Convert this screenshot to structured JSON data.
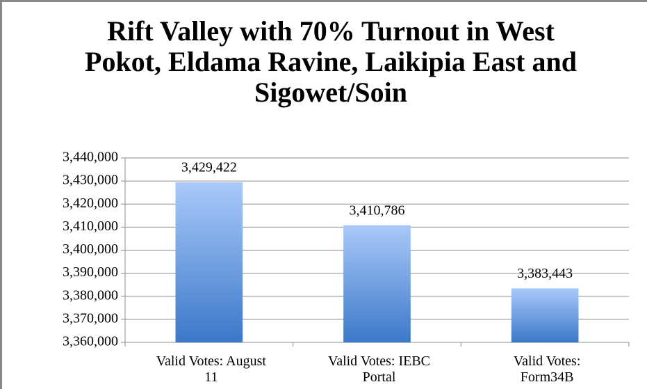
{
  "chart_data": {
    "type": "bar",
    "title": "Rift Valley with 70% Turnout in West Pokot, Eldama Ravine, Laikipia East and Sigowet/Soin",
    "categories": [
      "Valid Votes: August 11",
      "Valid Votes: IEBC Portal",
      "Valid Votes: Form34B"
    ],
    "values": [
      3429422,
      3410786,
      3383443
    ],
    "value_labels": [
      "3,429,422",
      "3,410,786",
      "3,383,443"
    ],
    "color": "#4a84d4",
    "ylim": [
      3360000,
      3440000
    ],
    "yticks": [
      {
        "value": 3360000,
        "label": "3,360,000"
      },
      {
        "value": 3370000,
        "label": "3,370,000"
      },
      {
        "value": 3380000,
        "label": "3,380,000"
      },
      {
        "value": 3390000,
        "label": "3,390,000"
      },
      {
        "value": 3400000,
        "label": "3,400,000"
      },
      {
        "value": 3410000,
        "label": "3,410,000"
      },
      {
        "value": 3420000,
        "label": "3,420,000"
      },
      {
        "value": 3430000,
        "label": "3,430,000"
      },
      {
        "value": 3440000,
        "label": "3,440,000"
      }
    ],
    "grid": true
  }
}
